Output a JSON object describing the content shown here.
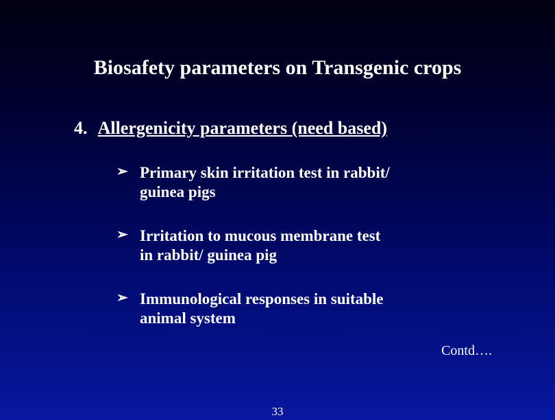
{
  "slide": {
    "background_gradient_top": "#000010",
    "background_gradient_bottom": "#0818a0",
    "text_color": "#ffffff",
    "title": "Biosafety parameters on Transgenic  crops",
    "title_fontsize": 30,
    "section": {
      "number": "4.",
      "heading": "Allergenicity parameters (need based)",
      "heading_fontsize": 26,
      "underline": true
    },
    "bullet_marker": "➢",
    "bullet_fontsize": 23,
    "bullets": [
      {
        "line1": "Primary skin irritation test in rabbit/",
        "line2": "guinea pigs"
      },
      {
        "line1": "Irritation to mucous membrane test",
        "line2": " in rabbit/ guinea pig"
      },
      {
        "line1": "Immunological responses in suitable",
        "line2": "animal system"
      }
    ],
    "contd_text": "Contd….",
    "contd_fontsize": 20,
    "page_number": "33",
    "page_number_fontsize": 17
  }
}
